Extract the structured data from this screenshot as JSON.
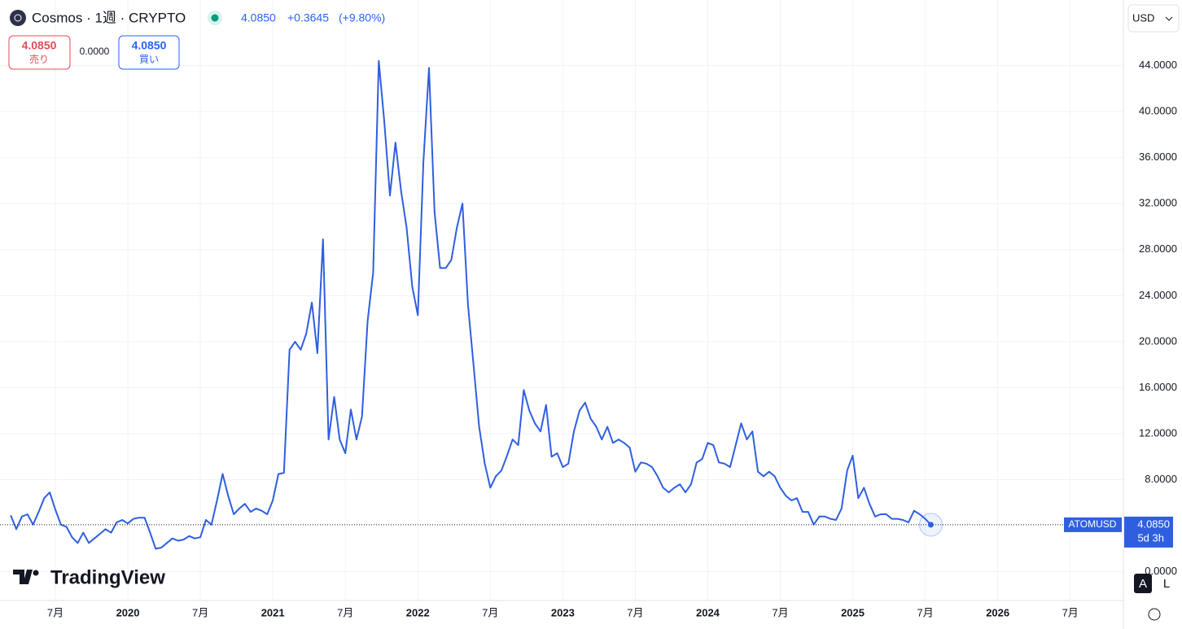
{
  "chart_data": {
    "type": "line",
    "title": "Cosmos · 1週 · CRYPTO",
    "series": [
      {
        "name": "ATOMUSD",
        "color": "#2f5fe0",
        "values": [
          4.9,
          3.7,
          4.8,
          5.0,
          4.1,
          5.2,
          6.4,
          6.9,
          5.4,
          4.1,
          3.9,
          3.0,
          2.5,
          3.4,
          2.5,
          2.9,
          3.3,
          3.7,
          3.4,
          4.3,
          4.5,
          4.2,
          4.6,
          4.7,
          4.7,
          3.4,
          2.0,
          2.1,
          2.5,
          2.9,
          2.7,
          2.8,
          3.1,
          2.9,
          3.0,
          4.5,
          4.1,
          6.2,
          8.5,
          6.6,
          5.0,
          5.5,
          5.9,
          5.2,
          5.5,
          5.3,
          5.0,
          6.2,
          8.5,
          8.6,
          19.3,
          20.0,
          19.3,
          20.7,
          23.4,
          19.0,
          28.9,
          11.5,
          15.2,
          11.5,
          10.3,
          14.1,
          11.5,
          13.5,
          21.8,
          26.0,
          44.4,
          39.1,
          32.7,
          37.3,
          33.1,
          29.9,
          24.8,
          22.3,
          35.6,
          43.8,
          31.3,
          26.4,
          26.4,
          27.1,
          29.9,
          32.0,
          23.2,
          17.9,
          12.6,
          9.4,
          7.3,
          8.3,
          8.8,
          10.1,
          11.5,
          11.0,
          15.8,
          14.0,
          12.9,
          12.2,
          14.5,
          10.0,
          10.3,
          9.1,
          9.4,
          12.2,
          14.0,
          14.7,
          13.3,
          12.6,
          11.5,
          12.6,
          11.2,
          11.5,
          11.2,
          10.8,
          8.7,
          9.5,
          9.4,
          9.1,
          8.3,
          7.3,
          6.9,
          7.3,
          7.6,
          6.9,
          7.6,
          9.5,
          9.8,
          11.2,
          11.0,
          9.5,
          9.4,
          9.1,
          11.0,
          12.9,
          11.5,
          12.2,
          8.7,
          8.3,
          8.7,
          8.3,
          7.3,
          6.6,
          6.2,
          6.4,
          5.2,
          5.2,
          4.1,
          4.8,
          4.8,
          4.6,
          4.5,
          5.5,
          8.8,
          10.1,
          6.4,
          7.3,
          5.9,
          4.8,
          5.0,
          5.0,
          4.6,
          4.6,
          4.5,
          4.3,
          5.3,
          5.0,
          4.6,
          4.085,
          null,
          null,
          null,
          null,
          null,
          null,
          null,
          null,
          null,
          null,
          null,
          null,
          null,
          null,
          null,
          null,
          null,
          null,
          null,
          null,
          null,
          null,
          null,
          null,
          null,
          null,
          null,
          null,
          null,
          null,
          null,
          null,
          null
        ]
      }
    ],
    "categories": [
      null,
      null,
      null,
      null,
      null,
      null,
      null,
      null,
      "7月",
      null,
      null,
      null,
      null,
      null,
      null,
      null,
      null,
      null,
      null,
      null,
      null,
      "2020",
      null,
      null,
      null,
      null,
      null,
      null,
      null,
      null,
      null,
      null,
      null,
      null,
      "7月",
      null,
      null,
      null,
      null,
      null,
      null,
      null,
      null,
      null,
      null,
      null,
      null,
      "2021",
      null,
      null,
      null,
      null,
      null,
      null,
      null,
      null,
      null,
      null,
      null,
      null,
      "7月",
      null,
      null,
      null,
      null,
      null,
      null,
      null,
      null,
      null,
      null,
      null,
      null,
      "2022",
      null,
      null,
      null,
      null,
      null,
      null,
      null,
      null,
      null,
      null,
      null,
      null,
      "7月",
      null,
      null,
      null,
      null,
      null,
      null,
      null,
      null,
      null,
      null,
      null,
      null,
      "2023",
      null,
      null,
      null,
      null,
      null,
      null,
      null,
      null,
      null,
      null,
      null,
      null,
      "7月",
      null,
      null,
      null,
      null,
      null,
      null,
      null,
      null,
      null,
      null,
      null,
      null,
      "2024",
      null,
      null,
      null,
      null,
      null,
      null,
      null,
      null,
      null,
      null,
      null,
      null,
      "7月",
      null,
      null,
      null,
      null,
      null,
      null,
      null,
      null,
      null,
      null,
      null,
      null,
      "2025",
      null,
      null,
      null,
      null,
      null,
      null,
      null,
      null,
      null,
      null,
      null,
      null,
      "7月",
      null,
      null,
      null,
      null,
      null,
      null,
      null,
      null,
      null,
      null,
      null,
      null,
      "2026",
      null,
      null,
      null,
      null,
      null,
      null,
      null,
      null,
      null,
      null,
      null,
      null,
      "7月",
      null,
      null,
      null,
      null,
      null,
      null,
      null,
      null
    ],
    "ylim": [
      -2.5,
      49.7
    ],
    "yticks": [
      {
        "value": 0,
        "label": "0.0000"
      },
      {
        "value": 8,
        "label": "8.0000"
      },
      {
        "value": 12,
        "label": "12.0000"
      },
      {
        "value": 16,
        "label": "16.0000"
      },
      {
        "value": 20,
        "label": "20.0000"
      },
      {
        "value": 24,
        "label": "24.0000"
      },
      {
        "value": 28,
        "label": "28.0000"
      },
      {
        "value": 32,
        "label": "32.0000"
      },
      {
        "value": 36,
        "label": "36.0000"
      },
      {
        "value": 40,
        "label": "40.0000"
      },
      {
        "value": 44,
        "label": "44.0000"
      }
    ],
    "grid": true
  },
  "header": {
    "price": "4.0850",
    "change": "+0.3645",
    "change_pct": "(+9.80%)",
    "sell_price": "4.0850",
    "sell_label": "売り",
    "spread": "0.0000",
    "buy_price": "4.0850",
    "buy_label": "買い",
    "currency": "USD",
    "last_price": "4.0850",
    "countdown": "5d 3h",
    "logo": "TradingView",
    "btn_auto": "A",
    "btn_log": "L"
  }
}
